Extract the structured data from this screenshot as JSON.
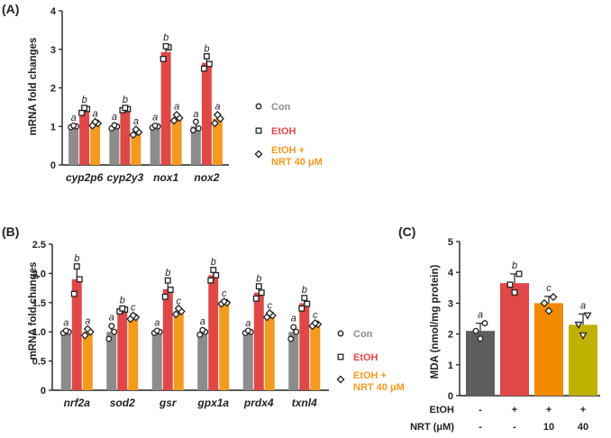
{
  "chart_data": [
    {
      "panel": "(A)",
      "type": "bar",
      "ylabel": "mRNA fold changes",
      "ylim": [
        0,
        4
      ],
      "yticks": [
        "0",
        "1",
        "2",
        "3",
        "4"
      ],
      "categories": [
        "cyp2p6",
        "cyp2y3",
        "nox1",
        "nox2"
      ],
      "legend_position": "right",
      "series": [
        {
          "name": "Con",
          "color": "#8c8c8c",
          "marker": "circle",
          "values": [
            1.0,
            1.0,
            1.0,
            1.0
          ],
          "errors": [
            0.03,
            0.05,
            0.04,
            0.12
          ],
          "points": [
            [
              0.98,
              1.0,
              1.02
            ],
            [
              0.95,
              1.0,
              1.03
            ],
            [
              0.97,
              1.0,
              1.02
            ],
            [
              0.9,
              0.95,
              1.12
            ]
          ],
          "sig": [
            "a",
            "a",
            "a",
            "a"
          ]
        },
        {
          "name": "EtOH",
          "color": "#e04848",
          "marker": "square",
          "values": [
            1.42,
            1.45,
            2.93,
            2.65
          ],
          "errors": [
            0.08,
            0.05,
            0.18,
            0.17
          ],
          "points": [
            [
              1.35,
              1.45,
              1.48
            ],
            [
              1.42,
              1.45,
              1.48
            ],
            [
              2.75,
              3.05,
              3.08
            ],
            [
              2.5,
              2.62,
              2.82
            ]
          ],
          "sig": [
            "b",
            "b",
            "b",
            "b"
          ]
        },
        {
          "name": "EtOH + NRT 40 μM",
          "color": "#f39a1f",
          "marker": "diamond",
          "values": [
            1.08,
            0.85,
            1.22,
            1.2
          ],
          "errors": [
            0.06,
            0.08,
            0.1,
            0.12
          ],
          "points": [
            [
              1.02,
              1.08,
              1.12
            ],
            [
              0.78,
              0.85,
              0.92
            ],
            [
              1.15,
              1.22,
              1.3
            ],
            [
              1.08,
              1.2,
              1.3
            ]
          ],
          "sig": [
            "a",
            "a",
            "a",
            "a"
          ]
        }
      ]
    },
    {
      "panel": "(B)",
      "type": "bar",
      "ylabel": "mRNA fold changes",
      "ylim": [
        0,
        2.5
      ],
      "yticks": [
        "0",
        "0.5",
        "1.0",
        "1.5",
        "2.0",
        "2.5"
      ],
      "categories": [
        "nrf2a",
        "sod2",
        "gsr",
        "gpx1a",
        "prdx4",
        "txnl4"
      ],
      "legend_position": "right",
      "series": [
        {
          "name": "Con",
          "color": "#8c8c8c",
          "marker": "circle",
          "values": [
            1.0,
            1.0,
            1.0,
            1.0,
            1.0,
            1.0
          ],
          "errors": [
            0.03,
            0.12,
            0.03,
            0.05,
            0.02,
            0.1
          ],
          "points": [
            [
              0.98,
              1.0,
              1.02
            ],
            [
              0.88,
              1.0,
              1.1
            ],
            [
              0.98,
              1.0,
              1.02
            ],
            [
              0.95,
              1.0,
              1.03
            ],
            [
              0.98,
              1.0,
              1.02
            ],
            [
              0.88,
              1.0,
              1.08
            ]
          ],
          "sig": [
            "a",
            "a",
            "a",
            "a",
            "a",
            "a"
          ]
        },
        {
          "name": "EtOH",
          "color": "#e04848",
          "marker": "square",
          "values": [
            1.9,
            1.38,
            1.73,
            1.97,
            1.67,
            1.49
          ],
          "errors": [
            0.23,
            0.03,
            0.15,
            0.1,
            0.11,
            0.1
          ],
          "points": [
            [
              1.65,
              1.9,
              2.12
            ],
            [
              1.35,
              1.38,
              1.4
            ],
            [
              1.6,
              1.72,
              1.88
            ],
            [
              1.88,
              1.97,
              2.06
            ],
            [
              1.57,
              1.67,
              1.78
            ],
            [
              1.4,
              1.48,
              1.58
            ]
          ],
          "sig": [
            "b",
            "b",
            "b",
            "b",
            "b",
            "b"
          ]
        },
        {
          "name": "EtOH + NRT 40 μM",
          "color": "#f39a1f",
          "marker": "diamond",
          "values": [
            1.0,
            1.25,
            1.35,
            1.5,
            1.28,
            1.13
          ],
          "errors": [
            0.06,
            0.04,
            0.05,
            0.03,
            0.04,
            0.03
          ],
          "points": [
            [
              0.94,
              1.0,
              1.05
            ],
            [
              1.22,
              1.25,
              1.28
            ],
            [
              1.3,
              1.35,
              1.4
            ],
            [
              1.48,
              1.5,
              1.52
            ],
            [
              1.25,
              1.28,
              1.32
            ],
            [
              1.1,
              1.13,
              1.15
            ]
          ],
          "sig": [
            "a",
            "c",
            "c",
            "c",
            "c",
            "c"
          ]
        }
      ]
    },
    {
      "panel": "(C)",
      "type": "bar",
      "ylabel": "MDA (nmol/mg protein)",
      "ylim": [
        0,
        5
      ],
      "yticks": [
        "0",
        "1",
        "2",
        "3",
        "4",
        "5"
      ],
      "bars": [
        {
          "value": 2.1,
          "error": 0.25,
          "color": "#5e5e5e",
          "marker": "circle",
          "points": [
            1.85,
            2.1,
            2.35
          ],
          "sig": "a"
        },
        {
          "value": 3.65,
          "error": 0.3,
          "color": "#e04848",
          "marker": "square",
          "points": [
            3.35,
            3.6,
            3.95
          ],
          "sig": "b"
        },
        {
          "value": 3.0,
          "error": 0.22,
          "color": "#f18a00",
          "marker": "diamond",
          "points": [
            2.75,
            3.0,
            3.2
          ],
          "sig": "c"
        },
        {
          "value": 2.3,
          "error": 0.35,
          "color": "#c0b000",
          "marker": "triangle",
          "points": [
            1.95,
            2.3,
            2.6
          ],
          "sig": "a"
        }
      ],
      "treatment_rows": [
        {
          "label": "EtOH",
          "values": [
            "-",
            "+",
            "+",
            "+"
          ]
        },
        {
          "label": "NRT (μM)",
          "values": [
            "-",
            "-",
            "10",
            "40"
          ]
        }
      ]
    }
  ]
}
